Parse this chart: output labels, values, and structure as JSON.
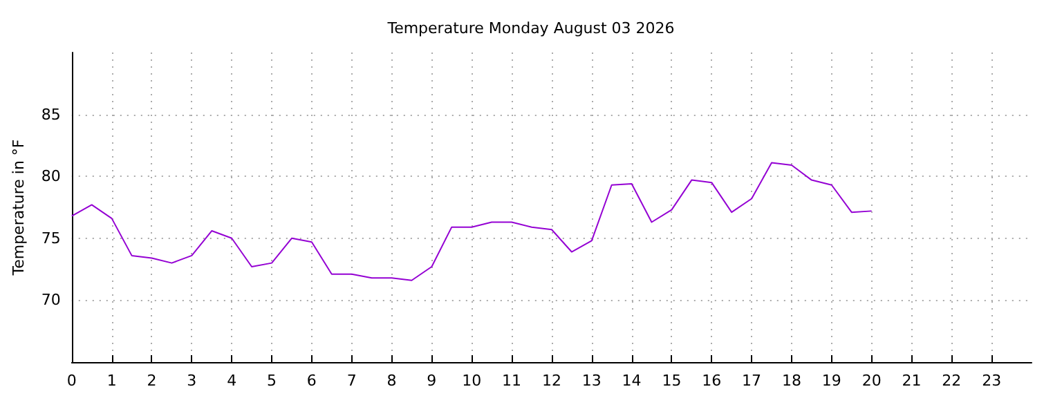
{
  "chart_data": {
    "type": "line",
    "title": "Temperature Monday August 03 2026",
    "ylabel": "Temperature in °F",
    "x": [
      0,
      0.5,
      1,
      1.5,
      2,
      2.5,
      3,
      3.5,
      4,
      4.5,
      5,
      5.5,
      6,
      6.5,
      7,
      7.5,
      8,
      8.5,
      9,
      9.5,
      10,
      10.5,
      11,
      11.5,
      12,
      12.5,
      13,
      13.5,
      14,
      14.5,
      15,
      15.5,
      16,
      16.5,
      17,
      17.5,
      18,
      18.5,
      19,
      19.5,
      20
    ],
    "series": [
      {
        "color": "#9400d3",
        "values": [
          76.8,
          77.7,
          76.6,
          73.6,
          73.4,
          73.0,
          73.6,
          75.6,
          75.0,
          72.7,
          73.0,
          75.0,
          74.7,
          72.1,
          72.1,
          71.8,
          71.8,
          71.6,
          72.7,
          75.9,
          75.9,
          76.3,
          76.3,
          75.9,
          75.7,
          73.9,
          74.8,
          79.3,
          79.4,
          76.3,
          77.3,
          79.7,
          79.5,
          77.1,
          78.2,
          81.1,
          80.9,
          79.7,
          79.3,
          77.1,
          77.2
        ]
      }
    ],
    "xlim": [
      0,
      24
    ],
    "xticks": [
      0,
      1,
      2,
      3,
      4,
      5,
      6,
      7,
      8,
      9,
      10,
      11,
      12,
      13,
      14,
      15,
      16,
      17,
      18,
      19,
      20,
      21,
      22,
      23
    ],
    "ylim": [
      65,
      90
    ],
    "yticks": [
      70,
      75,
      80,
      85
    ],
    "grid": true,
    "marker": "none",
    "line_style": "solid"
  }
}
